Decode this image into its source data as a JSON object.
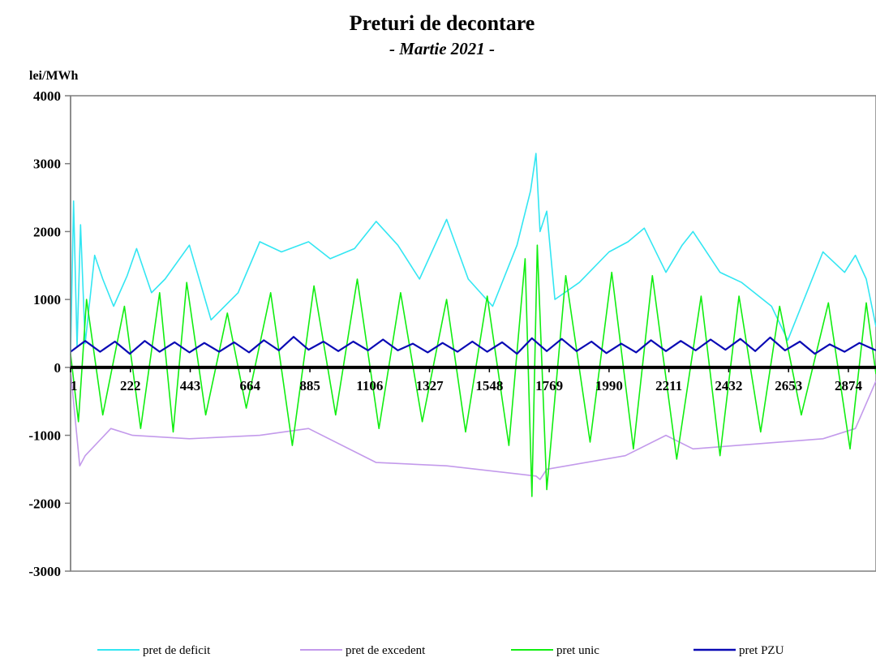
{
  "chart_data": {
    "type": "line",
    "title": "Preturi de decontare",
    "subtitle": "- Martie 2021 -",
    "ylabel": "lei/MWh",
    "xlabel": "",
    "ylim": [
      -3000,
      4000
    ],
    "xlim": [
      1,
      2976
    ],
    "yticks": [
      "4000",
      "3000",
      "2000",
      "1000",
      "0",
      "-1000",
      "-2000",
      "-3000"
    ],
    "ytick_values": [
      4000,
      3000,
      2000,
      1000,
      0,
      -1000,
      -2000,
      -3000
    ],
    "xticks": [
      "1",
      "222",
      "443",
      "664",
      "885",
      "1106",
      "1327",
      "1548",
      "1769",
      "1990",
      "2211",
      "2432",
      "2653",
      "2874"
    ],
    "xtick_values": [
      1,
      222,
      443,
      664,
      885,
      1106,
      1327,
      1548,
      1769,
      1990,
      2211,
      2432,
      2653,
      2874
    ],
    "grid": false,
    "legend_position": "bottom",
    "series": [
      {
        "name": "pret de deficit",
        "color": "#33E6F2",
        "points": [
          [
            1,
            200
          ],
          [
            12,
            2450
          ],
          [
            25,
            300
          ],
          [
            38,
            2100
          ],
          [
            55,
            350
          ],
          [
            90,
            1650
          ],
          [
            120,
            1300
          ],
          [
            160,
            900
          ],
          [
            210,
            1350
          ],
          [
            245,
            1750
          ],
          [
            300,
            1100
          ],
          [
            350,
            1300
          ],
          [
            440,
            1800
          ],
          [
            520,
            700
          ],
          [
            620,
            1100
          ],
          [
            700,
            1850
          ],
          [
            780,
            1700
          ],
          [
            880,
            1850
          ],
          [
            960,
            1600
          ],
          [
            1050,
            1750
          ],
          [
            1130,
            2150
          ],
          [
            1210,
            1800
          ],
          [
            1290,
            1300
          ],
          [
            1390,
            2180
          ],
          [
            1470,
            1300
          ],
          [
            1560,
            900
          ],
          [
            1650,
            1800
          ],
          [
            1700,
            2600
          ],
          [
            1720,
            3150
          ],
          [
            1735,
            2000
          ],
          [
            1760,
            2300
          ],
          [
            1790,
            1000
          ],
          [
            1880,
            1250
          ],
          [
            1990,
            1700
          ],
          [
            2060,
            1850
          ],
          [
            2120,
            2050
          ],
          [
            2200,
            1400
          ],
          [
            2260,
            1800
          ],
          [
            2300,
            2000
          ],
          [
            2400,
            1400
          ],
          [
            2480,
            1250
          ],
          [
            2590,
            900
          ],
          [
            2650,
            400
          ],
          [
            2780,
            1700
          ],
          [
            2860,
            1400
          ],
          [
            2900,
            1650
          ],
          [
            2940,
            1300
          ],
          [
            2976,
            600
          ]
        ]
      },
      {
        "name": "pret de excedent",
        "color": "#C39AEB",
        "points": [
          [
            1,
            -50
          ],
          [
            35,
            -1450
          ],
          [
            55,
            -1300
          ],
          [
            150,
            -900
          ],
          [
            230,
            -1000
          ],
          [
            440,
            -1050
          ],
          [
            700,
            -1000
          ],
          [
            880,
            -900
          ],
          [
            1130,
            -1400
          ],
          [
            1390,
            -1450
          ],
          [
            1720,
            -1600
          ],
          [
            1735,
            -1650
          ],
          [
            1760,
            -1500
          ],
          [
            2050,
            -1300
          ],
          [
            2200,
            -1000
          ],
          [
            2300,
            -1200
          ],
          [
            2780,
            -1050
          ],
          [
            2900,
            -900
          ],
          [
            2976,
            -200
          ]
        ]
      },
      {
        "name": "pret unic",
        "color": "#11EE11",
        "points": [
          [
            1,
            200
          ],
          [
            30,
            -800
          ],
          [
            60,
            1000
          ],
          [
            120,
            -700
          ],
          [
            200,
            900
          ],
          [
            260,
            -900
          ],
          [
            330,
            1100
          ],
          [
            380,
            -950
          ],
          [
            430,
            1250
          ],
          [
            500,
            -700
          ],
          [
            580,
            800
          ],
          [
            650,
            -600
          ],
          [
            740,
            1100
          ],
          [
            820,
            -1150
          ],
          [
            900,
            1200
          ],
          [
            980,
            -700
          ],
          [
            1060,
            1300
          ],
          [
            1140,
            -900
          ],
          [
            1220,
            1100
          ],
          [
            1300,
            -800
          ],
          [
            1390,
            1000
          ],
          [
            1460,
            -950
          ],
          [
            1540,
            1050
          ],
          [
            1620,
            -1150
          ],
          [
            1680,
            1600
          ],
          [
            1705,
            -1900
          ],
          [
            1725,
            1800
          ],
          [
            1760,
            -1800
          ],
          [
            1830,
            1350
          ],
          [
            1920,
            -1100
          ],
          [
            2000,
            1400
          ],
          [
            2080,
            -1200
          ],
          [
            2150,
            1350
          ],
          [
            2240,
            -1350
          ],
          [
            2330,
            1050
          ],
          [
            2400,
            -1300
          ],
          [
            2470,
            1050
          ],
          [
            2550,
            -950
          ],
          [
            2620,
            900
          ],
          [
            2700,
            -700
          ],
          [
            2800,
            950
          ],
          [
            2880,
            -1200
          ],
          [
            2940,
            950
          ],
          [
            2976,
            -100
          ]
        ]
      },
      {
        "name": "pret PZU",
        "color": "#0A0AB4",
        "points": [
          [
            1,
            230
          ],
          [
            55,
            390
          ],
          [
            110,
            230
          ],
          [
            165,
            380
          ],
          [
            220,
            200
          ],
          [
            275,
            390
          ],
          [
            330,
            230
          ],
          [
            385,
            370
          ],
          [
            440,
            220
          ],
          [
            495,
            360
          ],
          [
            550,
            230
          ],
          [
            605,
            370
          ],
          [
            660,
            220
          ],
          [
            715,
            400
          ],
          [
            770,
            250
          ],
          [
            825,
            450
          ],
          [
            880,
            260
          ],
          [
            935,
            380
          ],
          [
            990,
            240
          ],
          [
            1045,
            380
          ],
          [
            1100,
            250
          ],
          [
            1155,
            410
          ],
          [
            1210,
            250
          ],
          [
            1265,
            350
          ],
          [
            1320,
            220
          ],
          [
            1375,
            360
          ],
          [
            1430,
            230
          ],
          [
            1485,
            380
          ],
          [
            1540,
            230
          ],
          [
            1595,
            370
          ],
          [
            1650,
            200
          ],
          [
            1705,
            430
          ],
          [
            1760,
            240
          ],
          [
            1815,
            420
          ],
          [
            1870,
            240
          ],
          [
            1925,
            380
          ],
          [
            1980,
            210
          ],
          [
            2035,
            350
          ],
          [
            2090,
            220
          ],
          [
            2145,
            400
          ],
          [
            2200,
            240
          ],
          [
            2255,
            390
          ],
          [
            2310,
            250
          ],
          [
            2365,
            410
          ],
          [
            2420,
            260
          ],
          [
            2475,
            420
          ],
          [
            2530,
            240
          ],
          [
            2585,
            440
          ],
          [
            2640,
            250
          ],
          [
            2695,
            380
          ],
          [
            2750,
            200
          ],
          [
            2805,
            340
          ],
          [
            2860,
            230
          ],
          [
            2915,
            360
          ],
          [
            2976,
            250
          ]
        ]
      }
    ]
  }
}
